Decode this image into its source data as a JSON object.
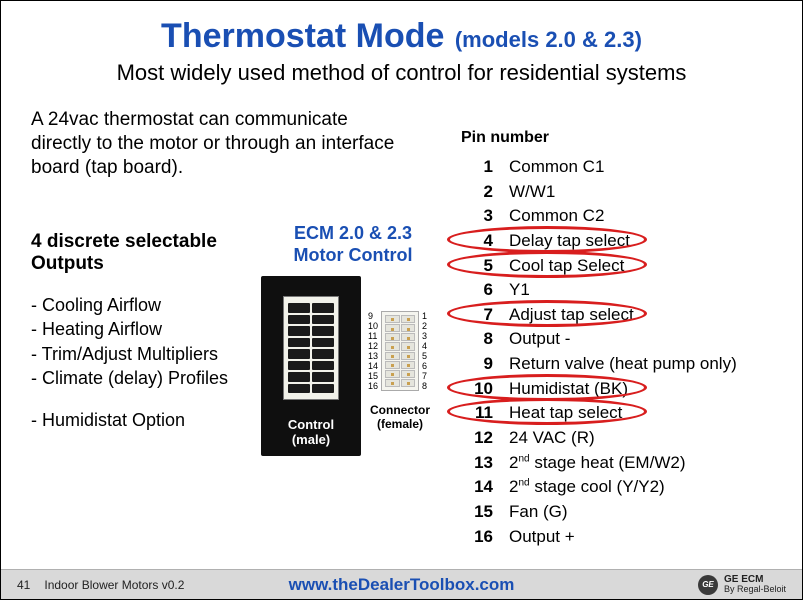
{
  "title": {
    "main": "Thermostat Mode",
    "models": "(models 2.0 & 2.3)"
  },
  "subtitle": "Most widely used method of control for residential systems",
  "intro": "A 24vac thermostat can communicate directly to the motor or through an interface board (tap board).",
  "outputs": {
    "heading": "4 discrete selectable Outputs",
    "items": [
      "- Cooling Airflow",
      "- Heating Airflow",
      "- Trim/Adjust Multipliers",
      "- Climate (delay) Profiles"
    ],
    "extra": "- Humidistat Option"
  },
  "diagram": {
    "label_line1": "ECM 2.0 & 2.3",
    "label_line2": "Motor Control",
    "control_label_line1": "Control",
    "control_label_line2": "(male)",
    "connector_label_line1": "Connector",
    "connector_label_line2": "(female)",
    "left_nums": [
      "9",
      "10",
      "11",
      "12",
      "13",
      "14",
      "15",
      "16"
    ],
    "right_nums": [
      "1",
      "2",
      "3",
      "4",
      "5",
      "6",
      "7",
      "8"
    ]
  },
  "pins": {
    "header": "Pin number",
    "rows": [
      {
        "n": "1",
        "label": "Common C1",
        "circled": false
      },
      {
        "n": "2",
        "label": "W/W1",
        "circled": false
      },
      {
        "n": "3",
        "label": "Common C2",
        "circled": false
      },
      {
        "n": "4",
        "label": "Delay tap select",
        "circled": true
      },
      {
        "n": "5",
        "label": "Cool tap Select",
        "circled": true
      },
      {
        "n": "6",
        "label": "Y1",
        "circled": false
      },
      {
        "n": "7",
        "label": "Adjust tap select",
        "circled": true
      },
      {
        "n": "8",
        "label": "Output -",
        "circled": false
      },
      {
        "n": "9",
        "label": "Return valve (heat pump only)",
        "circled": false
      },
      {
        "n": "10",
        "label": "Humidistat (BK)",
        "circled": true
      },
      {
        "n": "11",
        "label": "Heat tap select",
        "circled": true
      },
      {
        "n": "12",
        "label": "24 VAC (R)",
        "circled": false
      },
      {
        "n": "13",
        "label": "2nd stage heat (EM/W2)",
        "sup": "nd",
        "circled": false
      },
      {
        "n": "14",
        "label": "2nd stage cool (Y/Y2)",
        "sup": "nd",
        "circled": false
      },
      {
        "n": "15",
        "label": "Fan (G)",
        "circled": false
      },
      {
        "n": "16",
        "label": "Output +",
        "circled": false
      }
    ]
  },
  "footer": {
    "page": "41",
    "deck": "Indoor Blower Motors v0.2",
    "url": "www.theDealerToolbox.com",
    "brand": "GE ECM",
    "byline": "By Regal-Beloit",
    "monogram": "GE"
  },
  "colors": {
    "accent": "#1a4fb3",
    "ring": "#d81e1e",
    "footer_bg": "#d9d9d9"
  }
}
